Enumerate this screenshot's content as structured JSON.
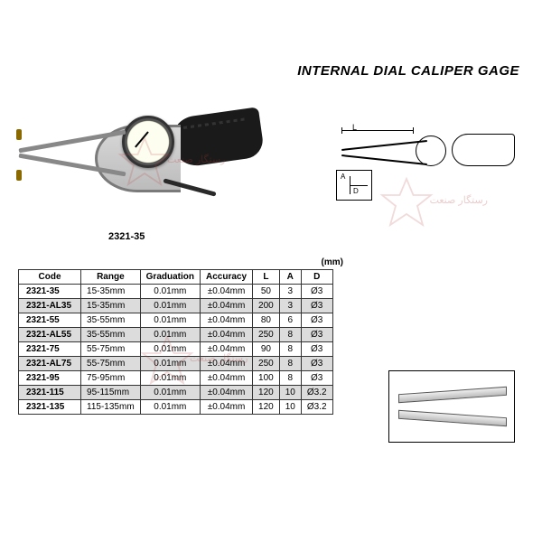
{
  "title": "INTERNAL DIAL CALIPER GAGE",
  "model_label": "2321-35",
  "unit_label": "(mm)",
  "schematic": {
    "dim_L": "L",
    "dim_A": "A",
    "dim_D": "D"
  },
  "table": {
    "columns": [
      "Code",
      "Range",
      "Graduation",
      "Accuracy",
      "L",
      "A",
      "D"
    ],
    "rows": [
      {
        "code": "2321-35",
        "range": "15-35mm",
        "grad": "0.01mm",
        "acc": "±0.04mm",
        "L": "50",
        "A": "3",
        "D": "Ø3",
        "shade": false
      },
      {
        "code": "2321-AL35",
        "range": "15-35mm",
        "grad": "0.01mm",
        "acc": "±0.04mm",
        "L": "200",
        "A": "3",
        "D": "Ø3",
        "shade": true
      },
      {
        "code": "2321-55",
        "range": "35-55mm",
        "grad": "0.01mm",
        "acc": "±0.04mm",
        "L": "80",
        "A": "6",
        "D": "Ø3",
        "shade": false
      },
      {
        "code": "2321-AL55",
        "range": "35-55mm",
        "grad": "0.01mm",
        "acc": "±0.04mm",
        "L": "250",
        "A": "8",
        "D": "Ø3",
        "shade": true
      },
      {
        "code": "2321-75",
        "range": "55-75mm",
        "grad": "0.01mm",
        "acc": "±0.04mm",
        "L": "90",
        "A": "8",
        "D": "Ø3",
        "shade": false
      },
      {
        "code": "2321-AL75",
        "range": "55-75mm",
        "grad": "0.01mm",
        "acc": "±0.04mm",
        "L": "250",
        "A": "8",
        "D": "Ø3",
        "shade": true
      },
      {
        "code": "2321-95",
        "range": "75-95mm",
        "grad": "0.01mm",
        "acc": "±0.04mm",
        "L": "100",
        "A": "8",
        "D": "Ø3",
        "shade": false
      },
      {
        "code": "2321-115",
        "range": "95-115mm",
        "grad": "0.01mm",
        "acc": "±0.04mm",
        "L": "120",
        "A": "10",
        "D": "Ø3.2",
        "shade": true
      },
      {
        "code": "2321-135",
        "range": "115-135mm",
        "grad": "0.01mm",
        "acc": "±0.04mm",
        "L": "120",
        "A": "10",
        "D": "Ø3.2",
        "shade": false
      }
    ]
  },
  "watermark_text": "رستگار صنعت",
  "colors": {
    "title": "#000000",
    "table_border": "#333333",
    "shade_row": "#dcdcdc",
    "watermark": "#b83a3a"
  },
  "fonts": {
    "title_size_pt": 12,
    "table_size_pt": 8,
    "label_size_pt": 9
  }
}
